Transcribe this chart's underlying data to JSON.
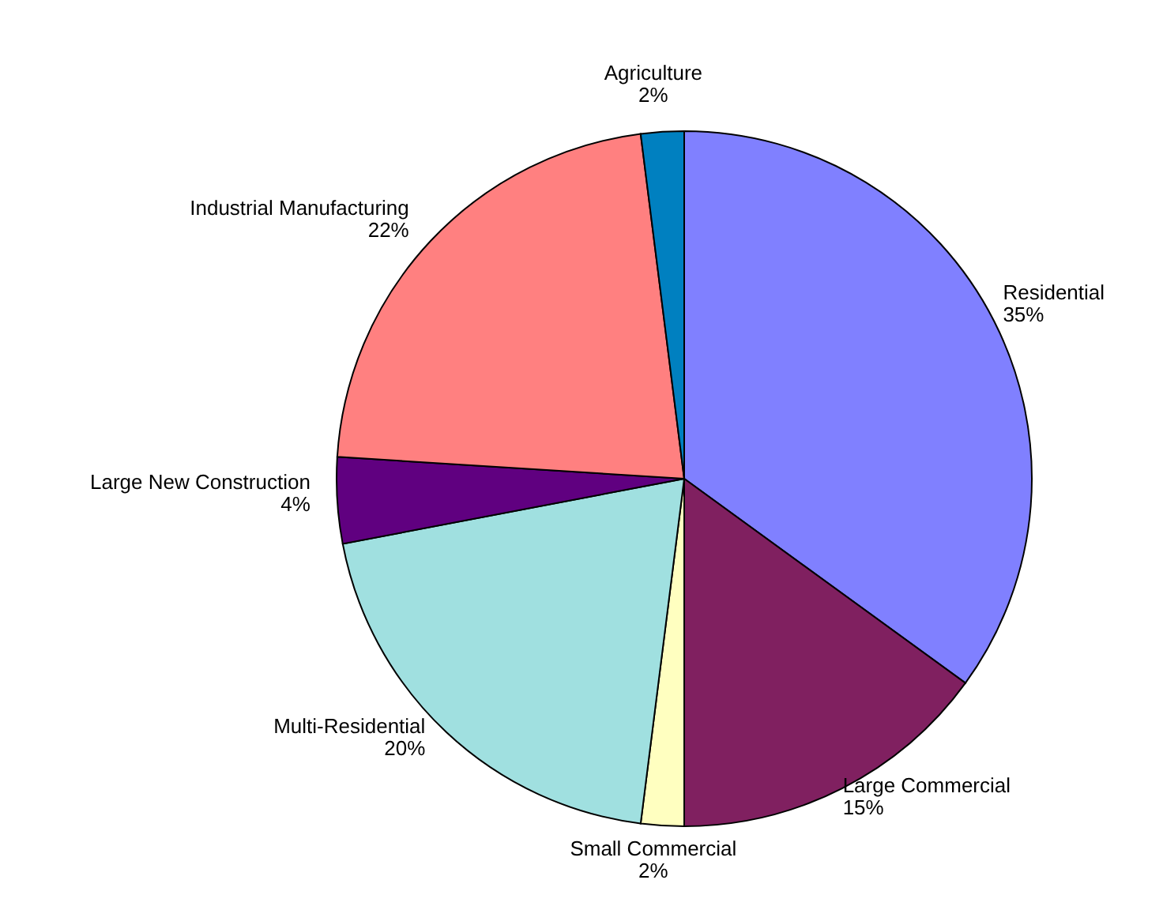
{
  "chart_data": {
    "type": "pie",
    "categories": [
      "Residential",
      "Large Commercial",
      "Small Commercial",
      "Multi-Residential",
      "Large New Construction",
      "Industrial Manufacturing",
      "Agriculture"
    ],
    "values": [
      35,
      15,
      2,
      20,
      4,
      22,
      2
    ],
    "value_labels": [
      "35%",
      "15%",
      "2%",
      "20%",
      "4%",
      "22%",
      "2%"
    ],
    "colors": [
      "#8080ff",
      "#802060",
      "#ffffc0",
      "#a0e0e0",
      "#600080",
      "#ff8080",
      "#0080c0"
    ],
    "legend": false
  }
}
